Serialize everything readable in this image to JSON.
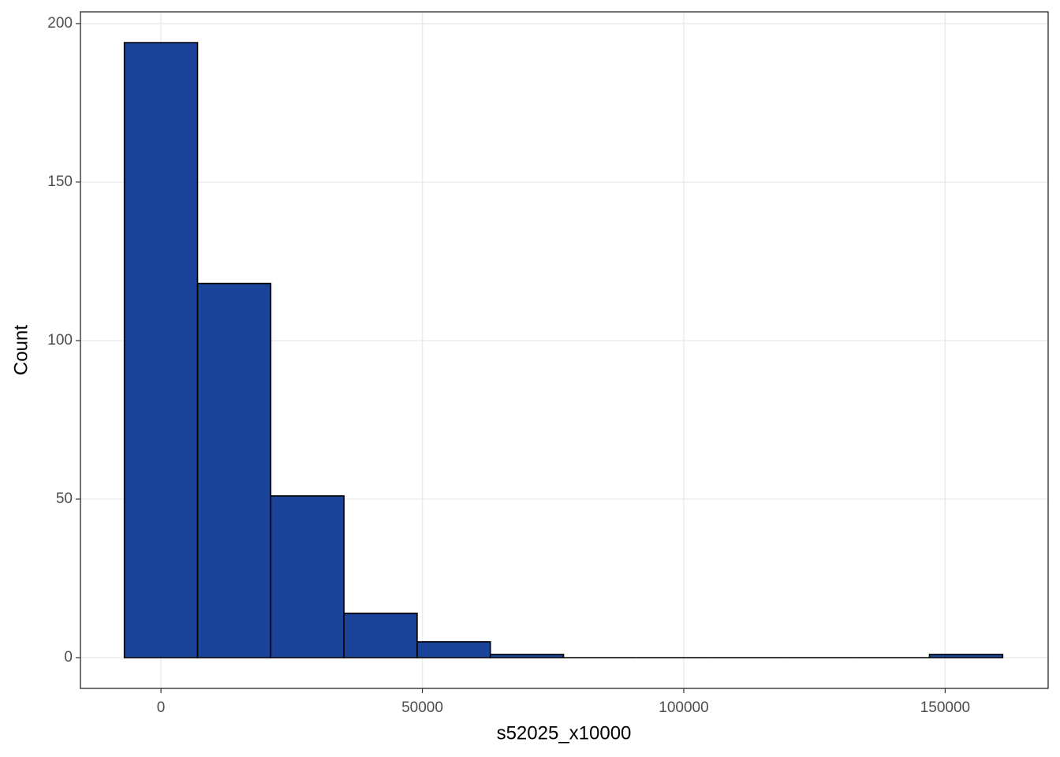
{
  "chart_data": {
    "type": "histogram",
    "x_label": "s52025_x10000",
    "y_label": "Count",
    "bins": [
      -7000,
      7000,
      21000,
      35000,
      49000,
      63000,
      77000,
      91000,
      105000,
      119000,
      133000,
      147000,
      161000
    ],
    "counts": [
      194,
      118,
      51,
      14,
      5,
      1,
      0,
      0,
      0,
      0,
      0,
      1
    ],
    "color": "#1a4399",
    "xlim": [
      -15400,
      169700
    ],
    "ylim": [
      -9.7,
      203.7
    ],
    "xticks": [
      0,
      50000,
      100000,
      150000
    ],
    "yticks": [
      0,
      50,
      100,
      150,
      200
    ],
    "grid": true
  }
}
